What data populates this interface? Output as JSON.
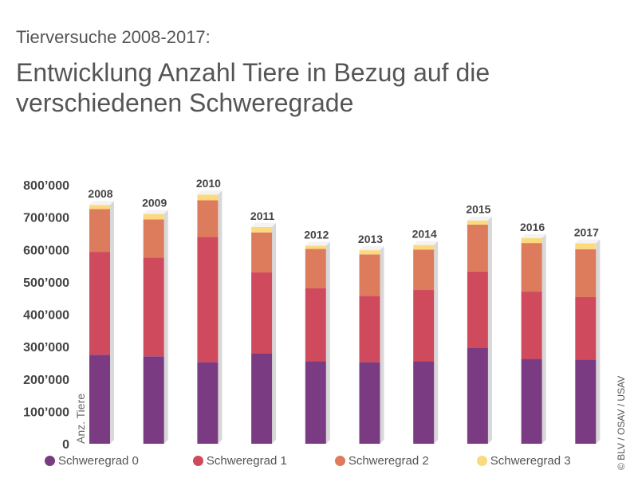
{
  "header": {
    "subtitle": "Tierversuche 2008-2017:",
    "title": "Entwicklung Anzahl Tiere in Bezug auf die verschiedenen Schweregrade"
  },
  "copyright": "© BLV / OSAV / USAV",
  "colors": {
    "s0": "#7b3b83",
    "s1": "#cf4a5c",
    "s2": "#dd7b5d",
    "s3": "#fcd97d",
    "axis_text": "#444444",
    "side": "#d8d8d8"
  },
  "chart_data": {
    "type": "bar",
    "stacked": true,
    "categories": [
      "2008",
      "2009",
      "2010",
      "2011",
      "2012",
      "2013",
      "2014",
      "2015",
      "2016",
      "2017"
    ],
    "series": [
      {
        "name": "Schweregrad 0",
        "values": [
          275000,
          270000,
          252000,
          280000,
          255000,
          252000,
          255000,
          297000,
          262000,
          260000
        ]
      },
      {
        "name": "Schweregrad 1",
        "values": [
          318000,
          305000,
          387000,
          250000,
          225000,
          205000,
          220000,
          235000,
          208000,
          193000
        ]
      },
      {
        "name": "Schweregrad 2",
        "values": [
          132000,
          118000,
          113000,
          123000,
          122000,
          128000,
          125000,
          145000,
          150000,
          148000
        ]
      },
      {
        "name": "Schweregrad 3",
        "values": [
          13000,
          17000,
          18000,
          17000,
          10000,
          13000,
          14000,
          13000,
          15000,
          18000
        ]
      }
    ],
    "ylabel": "Anz. Tiere",
    "ylim": [
      0,
      800000
    ],
    "yticks": [
      "0",
      "100’000",
      "200’000",
      "300’000",
      "400’000",
      "500’000",
      "600’000",
      "700’000",
      "800’000"
    ],
    "legend_position": "bottom",
    "grid": false
  }
}
